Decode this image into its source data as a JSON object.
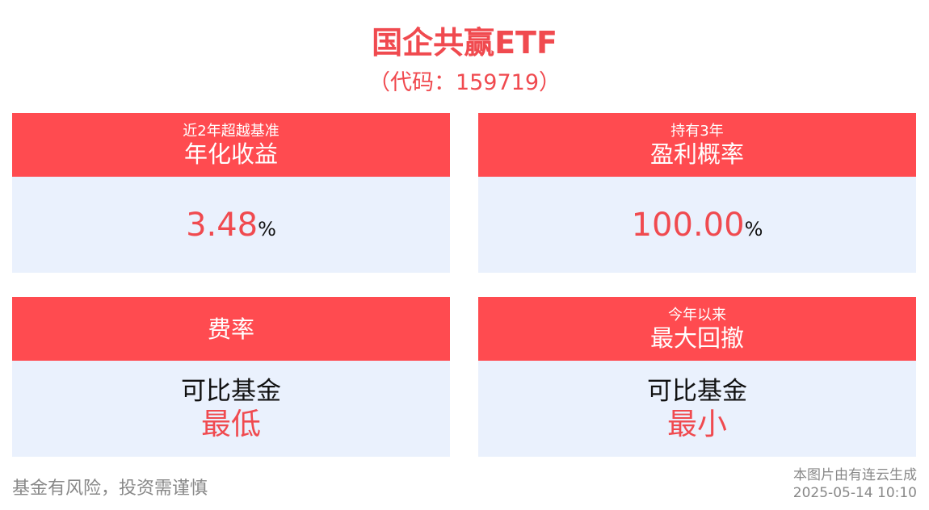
{
  "header": {
    "title": "国企共赢ETF",
    "code": "（代码：159719）"
  },
  "cards": [
    {
      "subtitle": "近2年超越基准",
      "title": "年化收益",
      "value": "3.48",
      "unit": "%"
    },
    {
      "subtitle": "持有3年",
      "title": "盈利概率",
      "value": "100.00",
      "unit": "%"
    },
    {
      "title": "费率",
      "line1": "可比基金",
      "line2": "最低"
    },
    {
      "subtitle": "今年以来",
      "title": "最大回撤",
      "line1": "可比基金",
      "line2": "最小"
    }
  ],
  "footer": {
    "disclaimer": "基金有风险，投资需谨慎",
    "generated": "本图片由有连云生成",
    "timestamp": "2025-05-14 10:10"
  }
}
